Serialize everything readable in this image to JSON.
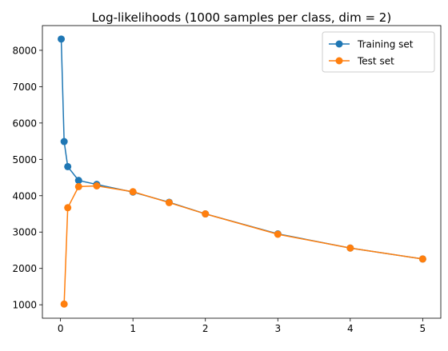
{
  "chart_data": {
    "type": "line",
    "title": "Log-likelihoods (1000 samples per class, dim = 2)",
    "xlabel": "",
    "ylabel": "",
    "xlim": [
      -0.25,
      5.25
    ],
    "ylim": [
      630,
      8680
    ],
    "xticks": [
      0,
      1,
      2,
      3,
      4,
      5
    ],
    "xtick_labels": [
      "0",
      "1",
      "2",
      "3",
      "4",
      "5"
    ],
    "yticks": [
      1000,
      2000,
      3000,
      4000,
      5000,
      6000,
      7000,
      8000
    ],
    "ytick_labels": [
      "1000",
      "2000",
      "3000",
      "4000",
      "5000",
      "6000",
      "7000",
      "8000"
    ],
    "grid": false,
    "legend_position": "top-right",
    "x": [
      0.01,
      0.05,
      0.1,
      0.25,
      0.5,
      1,
      1.5,
      2,
      3,
      4,
      5
    ],
    "series": [
      {
        "name": "Training set",
        "color": "#1f77b4",
        "marker": "circle",
        "values": [
          8310,
          5490,
          4800,
          4420,
          4310,
          4100,
          3820,
          3500,
          2950,
          2560,
          2260
        ]
      },
      {
        "name": "Test set",
        "color": "#ff7f0e",
        "marker": "circle",
        "values": [
          null,
          1020,
          3670,
          4250,
          4270,
          4110,
          3810,
          3500,
          2940,
          2560,
          2260
        ]
      }
    ]
  }
}
